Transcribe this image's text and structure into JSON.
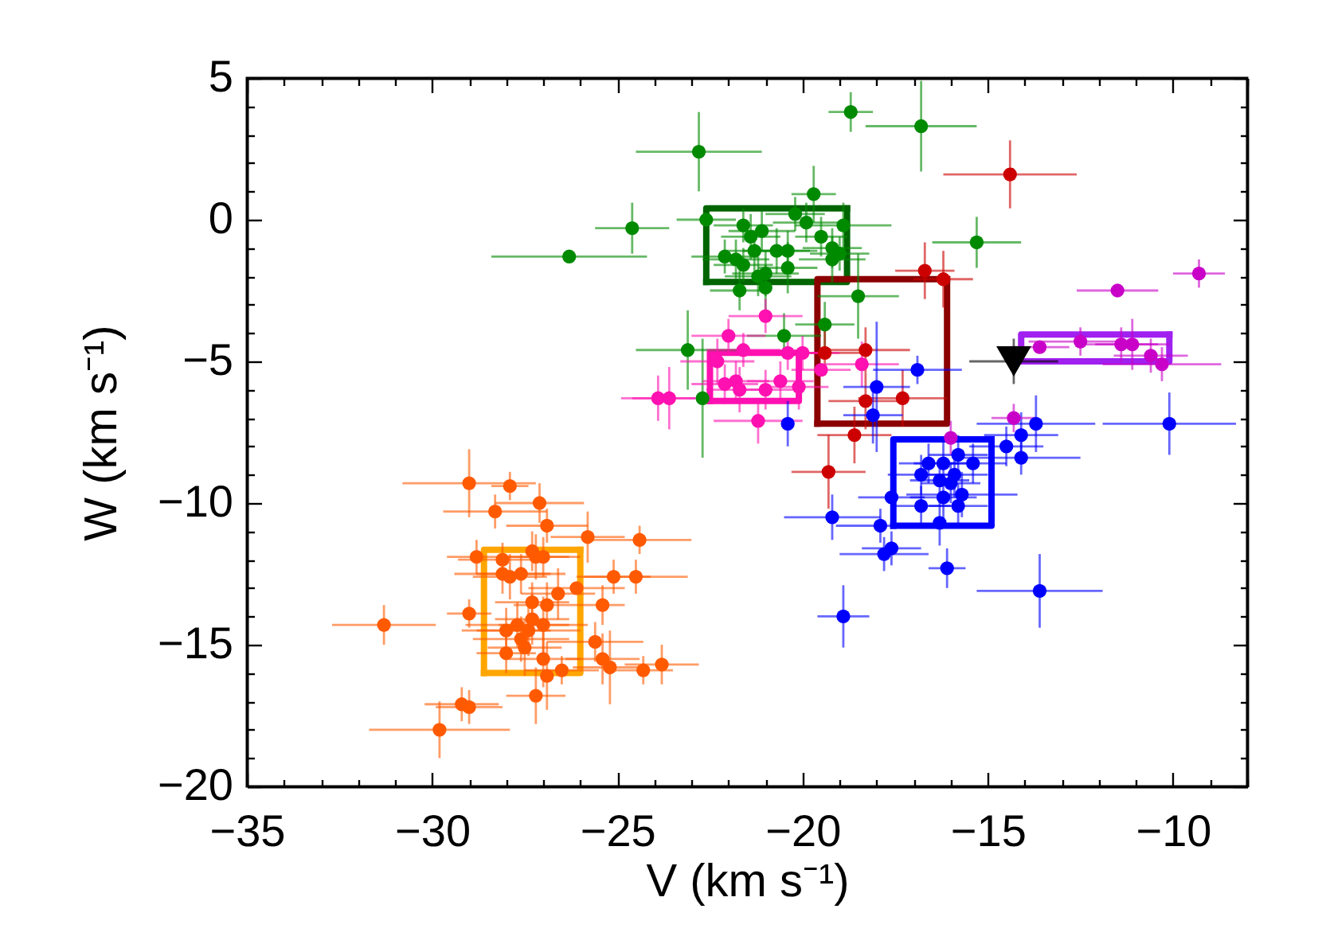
{
  "chart_data": {
    "type": "scatter",
    "xlabel": "V (km s⁻¹)",
    "ylabel": "W (km s⁻¹)",
    "xlim": [
      -35,
      -8
    ],
    "ylim": [
      -20,
      5
    ],
    "xticks": [
      -35,
      {
        "value": -34,
        "label": null
      },
      {
        "value": -33,
        "label": null
      },
      {
        "value": -32,
        "label": null
      },
      {
        "value": -31,
        "label": null
      },
      -30,
      {
        "value": -29,
        "label": null
      },
      {
        "value": -28,
        "label": null
      },
      {
        "value": -27,
        "label": null
      },
      {
        "value": -26,
        "label": null
      },
      -25,
      {
        "value": -24,
        "label": null
      },
      {
        "value": -23,
        "label": null
      },
      {
        "value": -22,
        "label": null
      },
      {
        "value": -21,
        "label": null
      },
      -20,
      {
        "value": -19,
        "label": null
      },
      {
        "value": -18,
        "label": null
      },
      {
        "value": -17,
        "label": null
      },
      {
        "value": -16,
        "label": null
      },
      -15,
      {
        "value": -14,
        "label": null
      },
      {
        "value": -13,
        "label": null
      },
      {
        "value": -12,
        "label": null
      },
      {
        "value": -11,
        "label": null
      },
      -10,
      {
        "value": -9,
        "label": null
      },
      {
        "value": -8,
        "label": null
      }
    ],
    "yticks": [
      -20,
      {
        "value": -19,
        "label": null
      },
      {
        "value": -18,
        "label": null
      },
      {
        "value": -17,
        "label": null
      },
      {
        "value": -16,
        "label": null
      },
      -15,
      {
        "value": -14,
        "label": null
      },
      {
        "value": -13,
        "label": null
      },
      {
        "value": -12,
        "label": null
      },
      {
        "value": -11,
        "label": null
      },
      -10,
      {
        "value": -9,
        "label": null
      },
      {
        "value": -8,
        "label": null
      },
      {
        "value": -7,
        "label": null
      },
      {
        "value": -6,
        "label": null
      },
      -5,
      {
        "value": -4,
        "label": null
      },
      {
        "value": -3,
        "label": null
      },
      {
        "value": -2,
        "label": null
      },
      {
        "value": -1,
        "label": null
      },
      0,
      {
        "value": 1,
        "label": null
      },
      {
        "value": 2,
        "label": null
      },
      {
        "value": 3,
        "label": null
      },
      {
        "value": 4,
        "label": null
      },
      5
    ],
    "series": [
      {
        "type": "line",
        "color": "#006400",
        "x": [
          -22.6,
          -22.6,
          -18.8
        ],
        "values": [
          -2.2,
          0.4,
          0.4
        ]
      },
      {
        "type": "line",
        "color": "#006400",
        "x": [
          -22.6,
          -18.8,
          -18.8
        ],
        "values": [
          -2.2,
          -2.2,
          0.4
        ]
      },
      {
        "type": "line",
        "color": "#8b0000",
        "x": [
          -19.6,
          -19.6,
          -16.1
        ],
        "values": [
          -7.2,
          -2.1,
          -2.1
        ]
      },
      {
        "type": "line",
        "color": "#8b0000",
        "x": [
          -19.6,
          -16.1,
          -16.1
        ],
        "values": [
          -7.2,
          -7.2,
          -2.1
        ]
      },
      {
        "type": "line",
        "color": "#ff10b0",
        "x": [
          -22.5,
          -22.5,
          -20.1
        ],
        "values": [
          -6.4,
          -4.7,
          -4.7
        ]
      },
      {
        "type": "line",
        "color": "#ff10b0",
        "x": [
          -22.5,
          -20.1,
          -20.1
        ],
        "values": [
          -6.4,
          -6.4,
          -4.7
        ]
      },
      {
        "type": "line",
        "color": "#0000ff",
        "x": [
          -17.55,
          -17.55,
          -14.9
        ],
        "values": [
          -10.8,
          -7.75,
          -7.75
        ]
      },
      {
        "type": "line",
        "color": "#0000ff",
        "x": [
          -17.55,
          -14.9,
          -14.9
        ],
        "values": [
          -10.8,
          -10.8,
          -7.75
        ]
      },
      {
        "type": "line",
        "color": "#a020f0",
        "x": [
          -14.1,
          -14.1,
          -10.1
        ],
        "values": [
          -5.0,
          -4.05,
          -4.05
        ]
      },
      {
        "type": "line",
        "color": "#a020f0",
        "x": [
          -14.1,
          -10.1,
          -10.1
        ],
        "values": [
          -5.0,
          -5.0,
          -4.05
        ]
      },
      {
        "type": "line",
        "color": "#ffa500",
        "x": [
          -28.6,
          -28.6,
          -26.0
        ],
        "values": [
          -16.0,
          -11.65,
          -11.65
        ]
      },
      {
        "type": "line",
        "color": "#ffa500",
        "x": [
          -28.6,
          -26.0,
          -26.0
        ],
        "values": [
          -16.0,
          -16.0,
          -11.65
        ]
      },
      {
        "marker": "circle",
        "color": "#008a00",
        "x": [
          -26.3,
          -24.6,
          -22.8,
          -22.6,
          -22.1,
          -23.1,
          -22.7,
          -18.7,
          -16.8,
          -19.7,
          -15.3,
          -18.5,
          -19.4,
          -20.5,
          -21.6,
          -21.1,
          -21.4,
          -20.2,
          -19.9,
          -18.9,
          -21.8,
          -21.6,
          -21.3,
          -20.7,
          -20.4,
          -20.4,
          -19.5,
          -19.2,
          -19.2,
          -19.0,
          -21.0,
          -21.7,
          -21.0,
          -21.2
        ],
        "values": [
          -1.3,
          -0.3,
          2.4,
          0.0,
          -1.3,
          -4.6,
          -6.3,
          3.8,
          3.3,
          0.9,
          -0.8,
          -2.7,
          -3.7,
          -4.1,
          -0.2,
          -0.4,
          -0.6,
          0.2,
          -0.1,
          -0.2,
          -1.4,
          -1.6,
          -1.1,
          -1.1,
          -1.1,
          -1.7,
          -0.6,
          -1.0,
          -1.4,
          -1.2,
          -1.9,
          -2.5,
          -2.4,
          -2.0
        ],
        "xerrors": [
          2.1,
          1.0,
          1.7,
          0.8,
          0.9,
          1.4,
          null,
          0.6,
          1.5,
          0.6,
          1.2,
          1.1,
          0.8,
          1.0,
          0.8,
          0.9,
          0.8,
          0.8,
          0.9,
          1.3,
          0.9,
          0.8,
          0.8,
          0.9,
          0.8,
          0.8,
          0.7,
          0.8,
          0.9,
          0.8,
          0.9,
          0.8,
          null,
          0.9
        ],
        "errors": [
          null,
          0.9,
          1.4,
          null,
          0.6,
          1.4,
          2.1,
          0.7,
          1.6,
          1.0,
          0.9,
          1.5,
          0.8,
          0.8,
          0.6,
          0.7,
          0.8,
          0.6,
          0.7,
          0.8,
          0.7,
          0.6,
          0.7,
          0.8,
          0.7,
          0.9,
          0.7,
          0.7,
          0.8,
          0.6,
          0.8,
          0.7,
          0.8,
          0.7
        ]
      },
      {
        "marker": "circle",
        "color": "#cc0000",
        "x": [
          -14.4,
          -16.7,
          -16.2,
          -19.4,
          -18.3,
          -18.3,
          -17.3,
          -18.6,
          -19.3
        ],
        "values": [
          1.6,
          -1.8,
          -2.1,
          -4.7,
          -4.6,
          -6.4,
          -6.3,
          -7.6,
          -8.9
        ],
        "xerrors": [
          1.8,
          0.8,
          0.8,
          1.0,
          1.2,
          1.0,
          1.2,
          1.0,
          1.0
        ],
        "errors": [
          1.2,
          1.0,
          1.0,
          0.8,
          0.8,
          1.0,
          1.0,
          1.0,
          1.3
        ]
      },
      {
        "marker": "circle",
        "color": "#ff10b0",
        "x": [
          -21.0,
          -22.0,
          -21.6,
          -22.3,
          -20.4,
          -20.0,
          -19.5,
          -18.4,
          -23.9,
          -23.6,
          -22.1,
          -21.8,
          -21.7,
          -21.0,
          -20.6,
          -20.1,
          -21.2
        ],
        "values": [
          -3.4,
          -4.1,
          -4.6,
          -5.0,
          -4.7,
          -4.7,
          -5.3,
          -5.1,
          -6.3,
          -6.3,
          -5.8,
          -5.7,
          -6.0,
          -6.0,
          -5.7,
          -5.9,
          -7.1
        ],
        "xerrors": [
          1.0,
          1.0,
          1.0,
          1.0,
          1.0,
          1.0,
          0.8,
          1.0,
          1.0,
          1.0,
          0.9,
          0.9,
          0.9,
          0.8,
          0.9,
          0.8,
          1.2
        ],
        "errors": [
          0.6,
          0.6,
          0.6,
          0.8,
          0.6,
          0.6,
          null,
          0.8,
          0.8,
          1.1,
          0.7,
          0.7,
          0.8,
          0.7,
          0.7,
          0.8,
          0.8
        ]
      },
      {
        "marker": "circle",
        "color": "#0000ff",
        "x": [
          -16.9,
          -18.0,
          -18.1,
          -20.4,
          -13.7,
          -10.1,
          -14.1,
          -14.5,
          -14.1,
          -15.8,
          -15.4,
          -16.6,
          -16.2,
          -16.8,
          -16.3,
          -15.9,
          -16.0,
          -16.2,
          -15.7,
          -15.8,
          -16.8,
          -17.6,
          -16.3,
          -19.2,
          -17.9,
          -17.6,
          -17.8,
          -16.1,
          -18.9,
          -13.6
        ],
        "values": [
          -5.3,
          -5.9,
          -6.9,
          -7.2,
          -7.2,
          -7.2,
          -7.6,
          -8.0,
          -8.4,
          -8.3,
          -8.6,
          -8.6,
          -8.6,
          -9.0,
          -9.2,
          -9.0,
          -9.3,
          -9.8,
          -9.7,
          -10.1,
          -10.1,
          -9.8,
          -10.7,
          -10.5,
          -10.8,
          -11.6,
          -11.8,
          -12.3,
          -14.0,
          -13.1
        ],
        "xerrors": [
          1.2,
          0.9,
          0.8,
          null,
          1.6,
          1.8,
          1.0,
          1.0,
          1.6,
          0.8,
          0.9,
          0.8,
          0.8,
          0.9,
          0.8,
          0.9,
          0.8,
          0.9,
          1.5,
          0.8,
          0.8,
          0.9,
          null,
          1.3,
          1.2,
          0.8,
          1.2,
          0.5,
          0.7,
          1.7
        ],
        "errors": [
          0.5,
          2.3,
          1.0,
          0.8,
          1.0,
          1.1,
          0.8,
          0.7,
          0.6,
          0.7,
          0.7,
          0.7,
          0.8,
          0.7,
          0.7,
          0.8,
          0.7,
          0.8,
          0.8,
          0.8,
          0.7,
          null,
          0.8,
          0.8,
          0.6,
          0.6,
          0.6,
          0.7,
          1.1,
          1.3
        ]
      },
      {
        "marker": "circle",
        "color": "#c800c8",
        "x": [
          -9.3,
          -11.5,
          -13.6,
          -12.5,
          -11.4,
          -11.1,
          -10.6,
          -10.3,
          -14.3,
          -16.0
        ],
        "values": [
          -1.9,
          -2.5,
          -4.5,
          -4.3,
          -4.4,
          -4.4,
          -4.8,
          -5.1,
          -7.0,
          -7.7
        ],
        "xerrors": [
          0.7,
          1.1,
          0.8,
          1.4,
          1.0,
          1.0,
          1.0,
          1.6,
          0.6,
          null
        ],
        "errors": [
          0.5,
          null,
          null,
          0.5,
          0.6,
          0.9,
          0.6,
          0.6,
          0.5,
          0.6
        ]
      },
      {
        "marker": "circle",
        "color": "#ff5a00",
        "x": [
          -29.0,
          -27.9,
          -27.1,
          -28.3,
          -26.9,
          -25.8,
          -24.4,
          -28.8,
          -28.1,
          -27.3,
          -27.2,
          -27.0,
          -28.1,
          -27.9,
          -27.6,
          -25.1,
          -24.5,
          -26.1,
          -26.6,
          -27.3,
          -26.9,
          -25.4,
          -29.0,
          -31.3,
          -28.0,
          -27.7,
          -27.4,
          -27.3,
          -27.0,
          -27.6,
          -27.5,
          -28.0,
          -27.0,
          -25.6,
          -25.4,
          -25.2,
          -26.9,
          -26.5,
          -24.3,
          -23.8,
          -27.2,
          -29.2,
          -29.0,
          -29.8
        ],
        "values": [
          -9.3,
          -9.4,
          -10.0,
          -10.3,
          -10.8,
          -11.2,
          -11.3,
          -11.9,
          -12.0,
          -11.7,
          -11.9,
          -11.9,
          -12.5,
          -12.6,
          -12.5,
          -12.6,
          -12.6,
          -13.0,
          -13.2,
          -13.5,
          -13.6,
          -13.6,
          -13.9,
          -14.3,
          -14.5,
          -14.3,
          -14.5,
          -14.1,
          -14.3,
          -14.8,
          -15.1,
          -15.3,
          -15.5,
          -14.9,
          -15.5,
          -15.8,
          -16.1,
          -15.9,
          -15.9,
          -15.7,
          -16.8,
          -17.1,
          -17.2,
          -18.0
        ],
        "xerrors": [
          1.8,
          0.5,
          1.2,
          1.4,
          1.1,
          1.0,
          1.4,
          0.8,
          1.2,
          null,
          0.9,
          1.0,
          1.3,
          1.0,
          1.2,
          1.0,
          1.4,
          1.3,
          1.0,
          1.0,
          0.9,
          0.6,
          0.6,
          1.4,
          1.2,
          1.4,
          1.4,
          1.0,
          1.2,
          1.3,
          1.0,
          0.8,
          1.0,
          1.3,
          1.0,
          1.0,
          null,
          1.0,
          0.8,
          1.0,
          0.8,
          1.0,
          0.9,
          1.9
        ],
        "errors": [
          1.2,
          0.5,
          0.7,
          0.6,
          0.6,
          0.9,
          0.5,
          0.6,
          0.6,
          0.7,
          0.8,
          0.7,
          0.7,
          0.8,
          0.7,
          0.6,
          0.6,
          null,
          0.9,
          0.7,
          0.8,
          0.7,
          0.5,
          0.7,
          0.8,
          0.8,
          0.9,
          0.9,
          1.0,
          0.8,
          1.0,
          0.7,
          1.0,
          0.7,
          0.9,
          1.3,
          1.2,
          0.5,
          0.5,
          0.7,
          1.0,
          0.6,
          0.6,
          1.0
        ]
      },
      {
        "marker": "triangle",
        "color": "#000000",
        "x": [
          -14.3
        ],
        "values": [
          -5.0
        ],
        "xerrors": [
          1.2
        ],
        "errors": [
          0.8
        ]
      }
    ]
  }
}
